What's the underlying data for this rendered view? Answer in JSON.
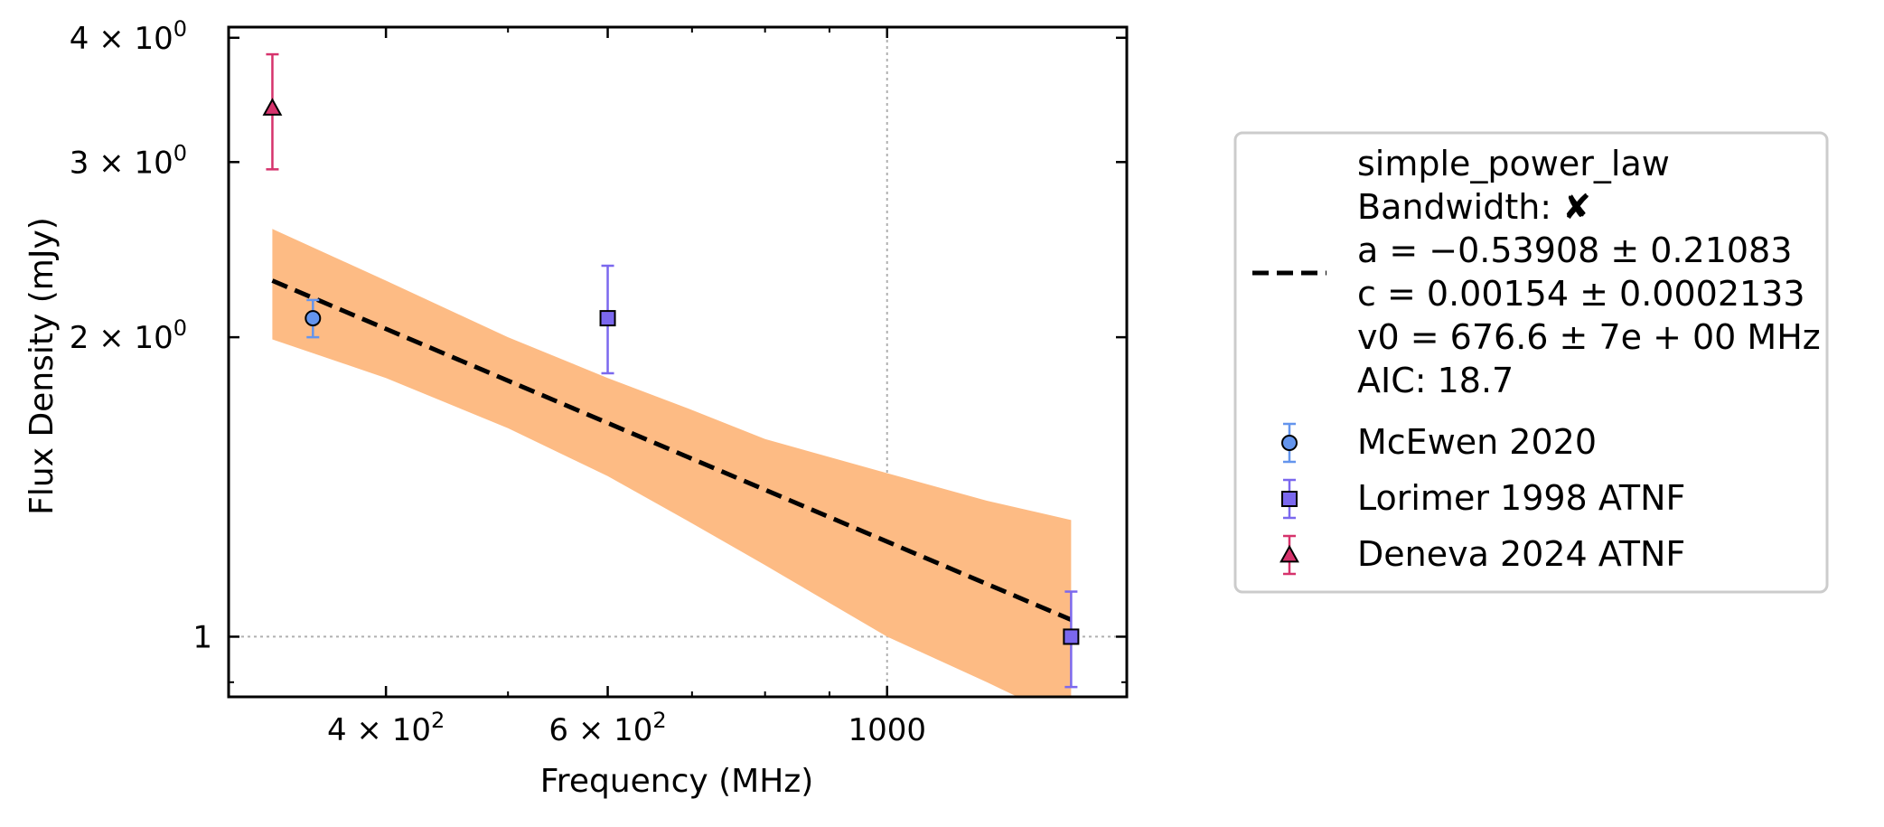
{
  "chart_data": {
    "type": "scatter",
    "xscale": "log",
    "yscale": "log",
    "xlabel": "Frequency (MHz)",
    "ylabel": "Flux Density (mJy)",
    "xlim": [
      300,
      1550
    ],
    "ylim": [
      0.87,
      4.1
    ],
    "x_ticks": [
      {
        "value": 400,
        "base": "4 × 10",
        "exp": "2"
      },
      {
        "value": 600,
        "base": "6 × 10",
        "exp": "2"
      },
      {
        "value": 1000,
        "base": "1000",
        "exp": ""
      }
    ],
    "x_minor_ticks": [
      300,
      500,
      700,
      800,
      900
    ],
    "y_ticks": [
      {
        "value": 1,
        "base": "1",
        "exp": ""
      },
      {
        "value": 2,
        "base": "2 × 10",
        "exp": "0"
      },
      {
        "value": 3,
        "base": "3 × 10",
        "exp": "0"
      },
      {
        "value": 4,
        "base": "4 × 10",
        "exp": "0"
      }
    ],
    "y_minor_ticks": [
      0.9
    ],
    "gridlines": {
      "x": [
        1000
      ],
      "y": [
        1
      ]
    },
    "fit": {
      "name": "simple_power_law",
      "lines": [
        "simple_power_law",
        "Bandwidth: ✘",
        "a = −0.53908 ± 0.21083",
        "c = 0.00154 ± 0.0002133",
        "v0 = 676.6 ± 7e + 00 MHz",
        "AIC: 18.7"
      ],
      "color": "#000000",
      "band_color": "#fdbb84",
      "curve": [
        {
          "x": 325,
          "y": 2.28
        },
        {
          "x": 1400,
          "y": 1.04
        }
      ],
      "band_upper": [
        {
          "x": 325,
          "y": 2.57
        },
        {
          "x": 400,
          "y": 2.28
        },
        {
          "x": 500,
          "y": 2.0
        },
        {
          "x": 600,
          "y": 1.82
        },
        {
          "x": 700,
          "y": 1.69
        },
        {
          "x": 800,
          "y": 1.58
        },
        {
          "x": 1000,
          "y": 1.46
        },
        {
          "x": 1200,
          "y": 1.37
        },
        {
          "x": 1400,
          "y": 1.31
        }
      ],
      "band_lower": [
        {
          "x": 325,
          "y": 1.99
        },
        {
          "x": 400,
          "y": 1.82
        },
        {
          "x": 500,
          "y": 1.62
        },
        {
          "x": 600,
          "y": 1.45
        },
        {
          "x": 700,
          "y": 1.3
        },
        {
          "x": 800,
          "y": 1.18
        },
        {
          "x": 1000,
          "y": 1.0
        },
        {
          "x": 1200,
          "y": 0.9
        },
        {
          "x": 1400,
          "y": 0.82
        }
      ]
    },
    "series": [
      {
        "name": "McEwen 2020",
        "marker": "circle",
        "color": "#6495ed",
        "edge": "#000000",
        "points": [
          {
            "x": 350,
            "y": 2.09,
            "ylow": 2.0,
            "yhigh": 2.18
          }
        ]
      },
      {
        "name": "Lorimer 1998 ATNF",
        "marker": "square",
        "color": "#7b68ee",
        "edge": "#000000",
        "points": [
          {
            "x": 600,
            "y": 2.09,
            "ylow": 1.84,
            "yhigh": 2.36
          },
          {
            "x": 1400,
            "y": 1.0,
            "ylow": 0.89,
            "yhigh": 1.11
          }
        ]
      },
      {
        "name": "Deneva 2024 ATNF",
        "marker": "triangle",
        "color": "#d6336c",
        "edge": "#000000",
        "points": [
          {
            "x": 325,
            "y": 3.4,
            "ylow": 2.95,
            "yhigh": 3.85
          }
        ]
      }
    ],
    "legend_position": "outside-right"
  }
}
